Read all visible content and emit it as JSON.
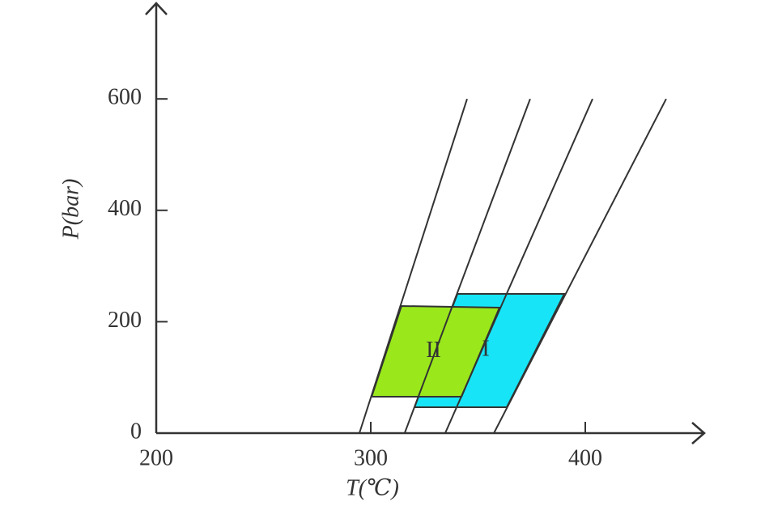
{
  "chart_data": {
    "type": "line",
    "x_label": "T(℃)",
    "y_label": "P(bar)",
    "xlim": [
      200,
      455
    ],
    "ylim": [
      0,
      770
    ],
    "xticks": [
      200,
      300,
      400
    ],
    "yticks": [
      0,
      200,
      400,
      600
    ],
    "series": [
      {
        "color": "#333333",
        "x": [
          294.7,
          344.9
        ],
        "values": [
          0,
          600
        ]
      },
      {
        "color": "#333333",
        "x": [
          315.8,
          374.3
        ],
        "values": [
          0,
          600
        ]
      },
      {
        "color": "#333333",
        "x": [
          334.7,
          403.4
        ],
        "values": [
          0,
          600
        ]
      },
      {
        "color": "#333333",
        "x": [
          357.4,
          437.7
        ],
        "values": [
          0,
          600
        ]
      }
    ],
    "regions": [
      {
        "label": "I",
        "color": "#17e5f7",
        "x": [
          320.4,
          340.4,
          390.2,
          363.4
        ],
        "values": [
          46.5,
          250,
          250,
          46.5
        ]
      },
      {
        "label": "II",
        "color": "#9ae81c",
        "x": [
          300.4,
          314.3,
          360,
          342.3
        ],
        "values": [
          65.4,
          228.2,
          225.3,
          65.4
        ]
      }
    ]
  }
}
